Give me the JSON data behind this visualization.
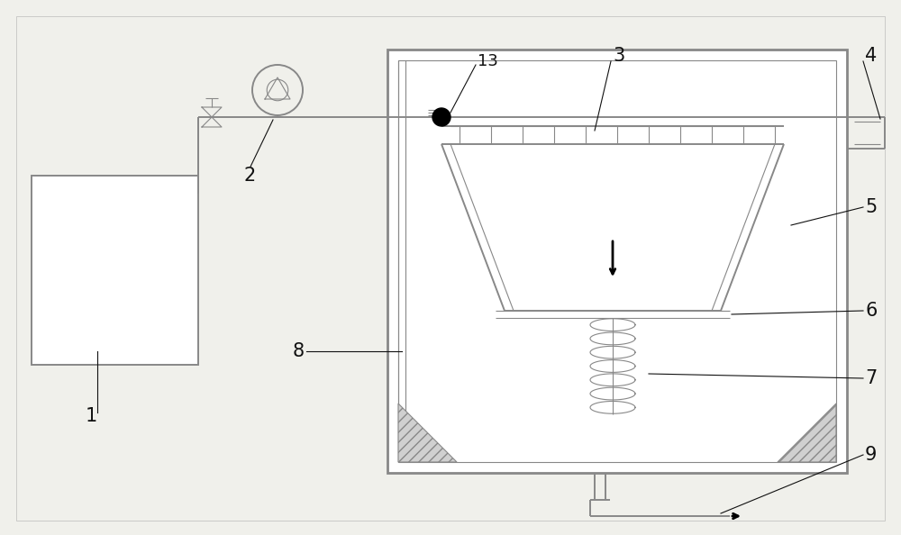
{
  "bg_color": "#f0f0eb",
  "line_color": "#888888",
  "text_color": "#111111",
  "figsize": [
    10.0,
    5.94
  ],
  "dpi": 100,
  "lw_thin": 0.8,
  "lw_med": 1.4,
  "lw_thick": 2.0
}
